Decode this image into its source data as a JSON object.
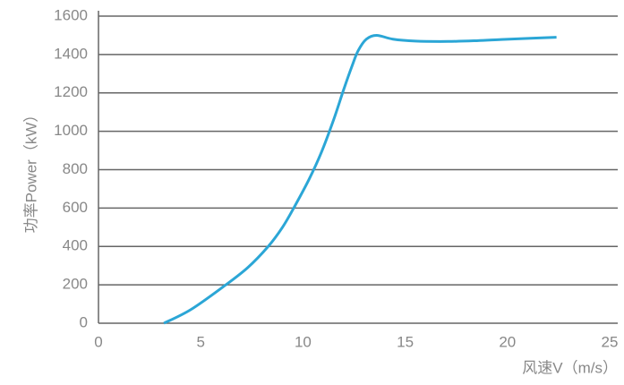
{
  "chart_data": {
    "type": "line",
    "x_label": "风速V（m/s）",
    "y_label": "功率Power（kW）",
    "x": [
      3.2,
      4.5,
      6.1,
      7.3,
      8.3,
      9.0,
      9.6,
      10.3,
      10.9,
      11.5,
      12.0,
      12.4,
      12.7,
      13.1,
      13.6,
      14.4,
      15.5,
      17.1,
      18.5,
      19.7,
      21.0,
      22.4
    ],
    "series": [
      {
        "name": "Power",
        "color": "#2ba6d6",
        "values": [
          0,
          70,
          190,
          290,
          400,
          500,
          610,
          750,
          890,
          1060,
          1220,
          1340,
          1420,
          1480,
          1500,
          1480,
          1470,
          1468,
          1472,
          1478,
          1484,
          1490
        ]
      }
    ],
    "xlim": [
      0,
      25
    ],
    "xticks": [
      0,
      5,
      10,
      15,
      20,
      25
    ],
    "ylim": [
      0,
      1600
    ],
    "yticks": [
      0,
      200,
      400,
      600,
      800,
      1000,
      1200,
      1400,
      1600
    ],
    "grid": true
  }
}
